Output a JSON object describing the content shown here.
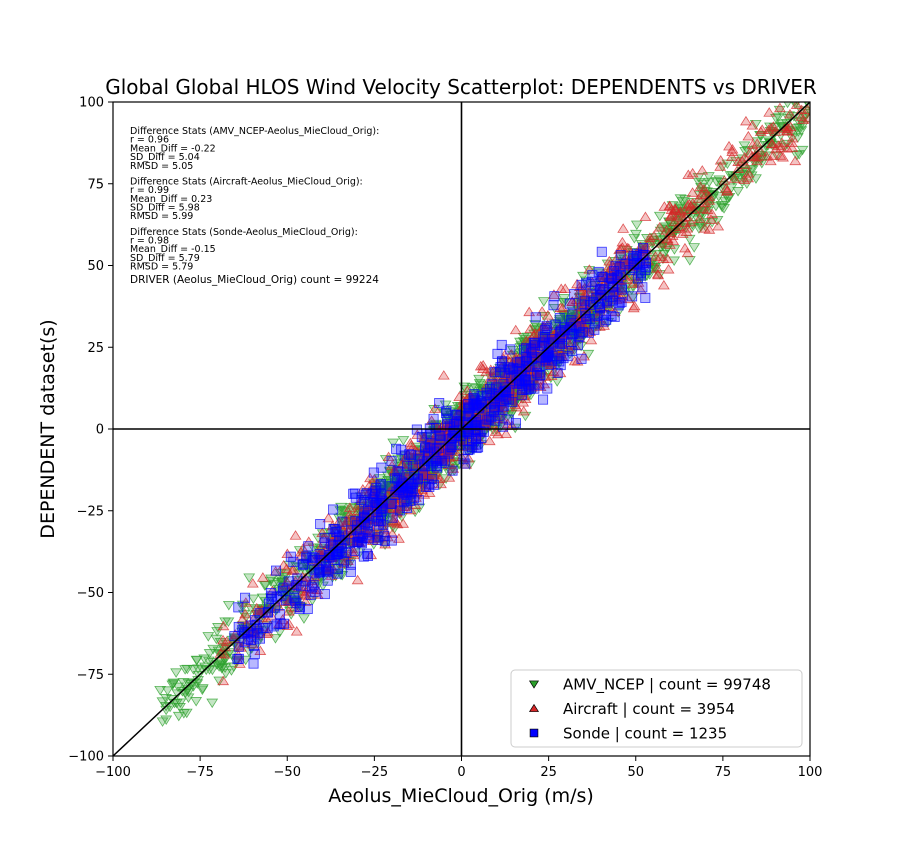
{
  "chart_data": {
    "type": "scatter",
    "title": "Global Global HLOS Wind Velocity Scatterplot: DEPENDENTS vs DRIVER",
    "xlabel": "Aeolus_MieCloud_Orig (m/s)",
    "ylabel": "DEPENDENT dataset(s)",
    "xlim": [
      -100,
      100
    ],
    "ylim": [
      -100,
      100
    ],
    "xticks": [
      "−100",
      "−75",
      "−50",
      "−25",
      "0",
      "25",
      "50",
      "75",
      "100"
    ],
    "yticks": [
      "−100",
      "−75",
      "−50",
      "−25",
      "0",
      "25",
      "50",
      "75",
      "100"
    ],
    "grid": false,
    "one_to_one_line": true,
    "zero_lines": true,
    "legend_position": "lower-right",
    "series": [
      {
        "name": "AMV_NCEP | count = 99748",
        "count": 99748,
        "marker": "triangle-down",
        "color": "#2ca02c",
        "x_range": [
          -87,
          100
        ],
        "fit": {
          "slope": 0.99,
          "intercept": -0.22,
          "spread": 5.04
        }
      },
      {
        "name": "Aircraft | count = 3954",
        "count": 3954,
        "marker": "triangle-up",
        "color": "#d62728",
        "x_range": [
          -70,
          100
        ],
        "fit": {
          "slope": 1.0,
          "intercept": 0.23,
          "spread": 5.98
        }
      },
      {
        "name": "Sonde | count = 1235",
        "count": 1235,
        "marker": "square",
        "color": "#0000ff",
        "x_range": [
          -66,
          53
        ],
        "fit": {
          "slope": 1.0,
          "intercept": -0.15,
          "spread": 5.79
        }
      }
    ],
    "stats_text": [
      [
        "Difference Stats (AMV_NCEP-Aeolus_MieCloud_Orig):",
        "r = 0.96",
        "Mean_Diff = -0.22",
        "SD_Diff = 5.04",
        "RMSD = 5.05"
      ],
      [
        "Difference Stats (Aircraft-Aeolus_MieCloud_Orig):",
        "r = 0.99",
        "Mean_Diff = 0.23",
        "SD_Diff = 5.98",
        "RMSD = 5.99"
      ],
      [
        "Difference Stats (Sonde-Aeolus_MieCloud_Orig):",
        "r = 0.98",
        "Mean_Diff = -0.15",
        "SD_Diff = 5.79",
        "RMSD = 5.79"
      ]
    ],
    "driver_text": "DRIVER (Aeolus_MieCloud_Orig) count = 99224"
  }
}
